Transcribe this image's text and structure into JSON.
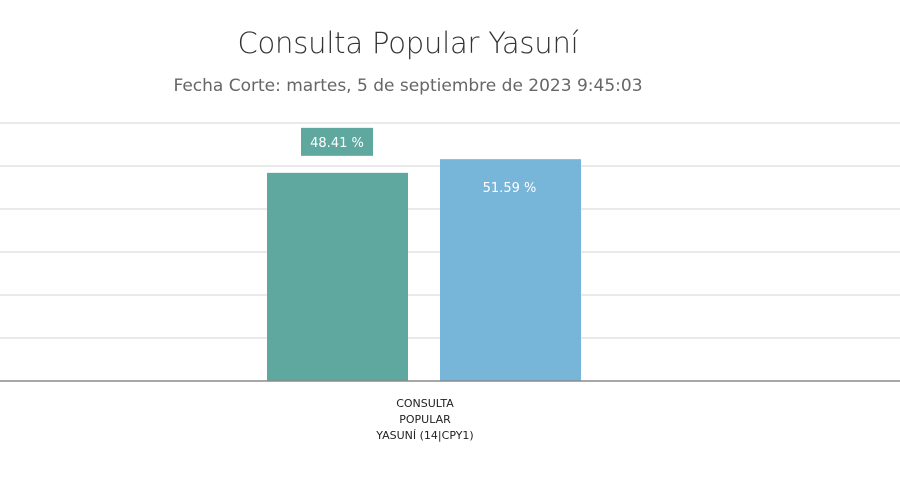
{
  "chart_data": {
    "type": "bar",
    "title": "Consulta Popular Yasuní",
    "subtitle": "Fecha Corte: martes, 5 de septiembre de 2023 9:45:03",
    "category_lines": [
      "CONSULTA",
      "POPULAR",
      "YASUNÍ (14|CPY1)"
    ],
    "categories": [
      "CONSULTA POPULAR YASUNÍ (14|CPY1)"
    ],
    "series": [
      {
        "values": [
          48.41
        ],
        "label": "48.41 %",
        "color": "#5fa8a0"
      },
      {
        "values": [
          51.59
        ],
        "label": "51.59 %",
        "color": "#77b5d9"
      }
    ],
    "ylim": [
      0,
      60
    ],
    "grid": true,
    "legend": "none"
  }
}
